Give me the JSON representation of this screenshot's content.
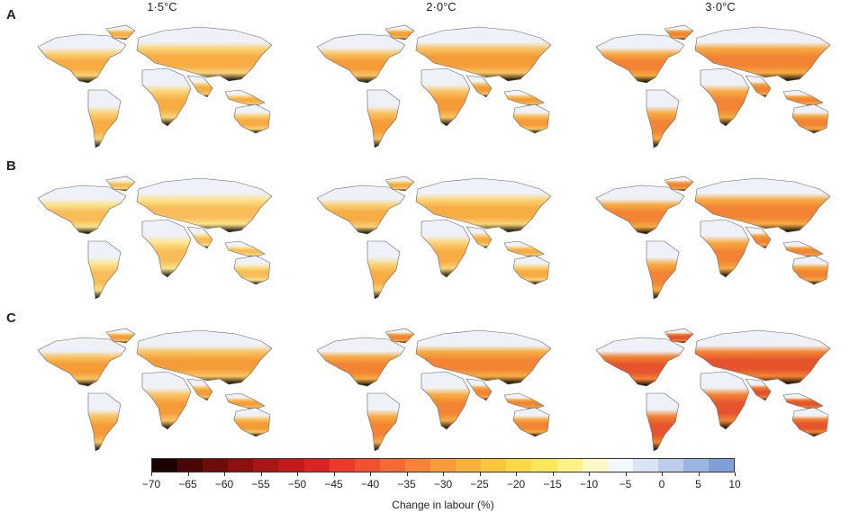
{
  "columns": [
    "1·5°C",
    "2·0°C",
    "3·0°C"
  ],
  "rows": [
    "A",
    "B",
    "C"
  ],
  "intensity": [
    [
      0.35,
      0.45,
      0.6
    ],
    [
      0.25,
      0.35,
      0.6
    ],
    [
      0.45,
      0.6,
      0.85
    ]
  ],
  "colorbar": {
    "title": "Change in labour (%)",
    "ticks": [
      "−70",
      "−65",
      "−60",
      "−55",
      "−50",
      "−45",
      "−40",
      "−35",
      "−30",
      "−25",
      "−20",
      "−15",
      "−10",
      "−5",
      "0",
      "5",
      "10"
    ],
    "colors": [
      "#1a0000",
      "#4a0505",
      "#6e0b0b",
      "#8c1010",
      "#a81616",
      "#c21b1b",
      "#d92424",
      "#ea3a2a",
      "#f1512f",
      "#f46a34",
      "#f6833a",
      "#f89b3b",
      "#f9b13c",
      "#fac53f",
      "#fbd848",
      "#fce75c",
      "#fdf18a",
      "#fef8c6",
      "#f4f7fb",
      "#dbe5f2",
      "#bccde9",
      "#9ab5e0",
      "#7f9fd6"
    ]
  }
}
